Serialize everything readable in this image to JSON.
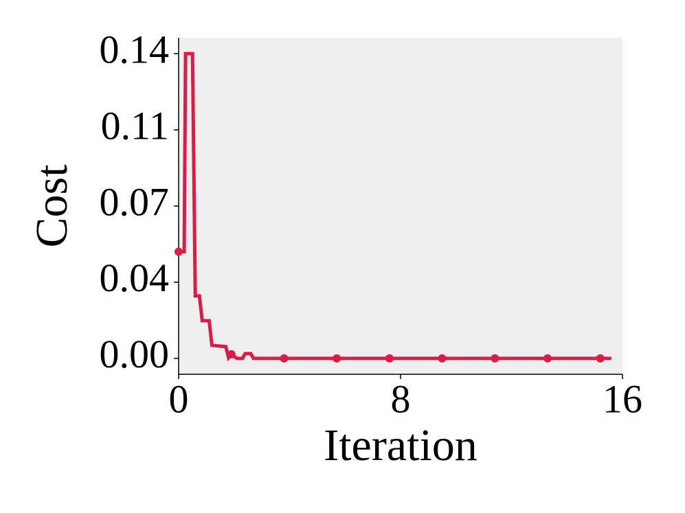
{
  "chart_data": {
    "type": "line",
    "xlabel": "Iteration",
    "ylabel": "Cost",
    "x": [
      0,
      0.2,
      0.25,
      0.5,
      0.6,
      0.75,
      0.85,
      1.1,
      1.2,
      1.7,
      1.8,
      1.9,
      2.1,
      2.3,
      2.4,
      2.6,
      2.7,
      3.8,
      5.7,
      7.6,
      9.5,
      11.4,
      13.3,
      15.2,
      15.6
    ],
    "series": [
      {
        "color": "#dc1c48",
        "values": [
          0.049,
          0.049,
          0.14,
          0.14,
          0.0287,
          0.0287,
          0.0173,
          0.0173,
          0.006,
          0.0054,
          0.0003,
          0.0019,
          0,
          0,
          0.0022,
          0.0022,
          0,
          0,
          0,
          0,
          0,
          0,
          0,
          0,
          0
        ],
        "markevery": [
          0,
          11,
          17,
          18,
          19,
          20,
          21,
          22,
          23
        ]
      }
    ],
    "xlim": [
      0,
      16
    ],
    "xticks": [
      0,
      8,
      16
    ],
    "ylim": [
      -0.0073,
      0.1473
    ],
    "yticks": [
      {
        "value": 0,
        "label": "0.00"
      },
      {
        "value": 0.035,
        "label": "0.04"
      },
      0.07,
      {
        "value": 0.105,
        "label": "0.11"
      },
      0.14
    ],
    "background": "#efefef"
  }
}
